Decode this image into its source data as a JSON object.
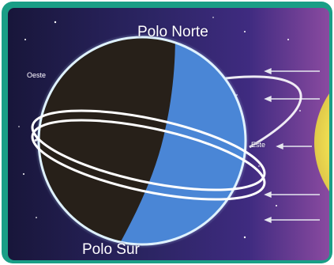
{
  "labels": {
    "north_pole": "Polo Norte",
    "south_pole": "Polo Sur",
    "west": "Oeste",
    "east": "Este"
  },
  "colors": {
    "frame": "#1a9e86",
    "space_dark": "#1b1640",
    "space_mid": "#3c2a7c",
    "planet_day": "#4a86d6",
    "planet_night": "#272019",
    "sun": "#f4e85a",
    "orbit": "#ffffff",
    "sunlight_arrows": "#e6e8ef"
  }
}
